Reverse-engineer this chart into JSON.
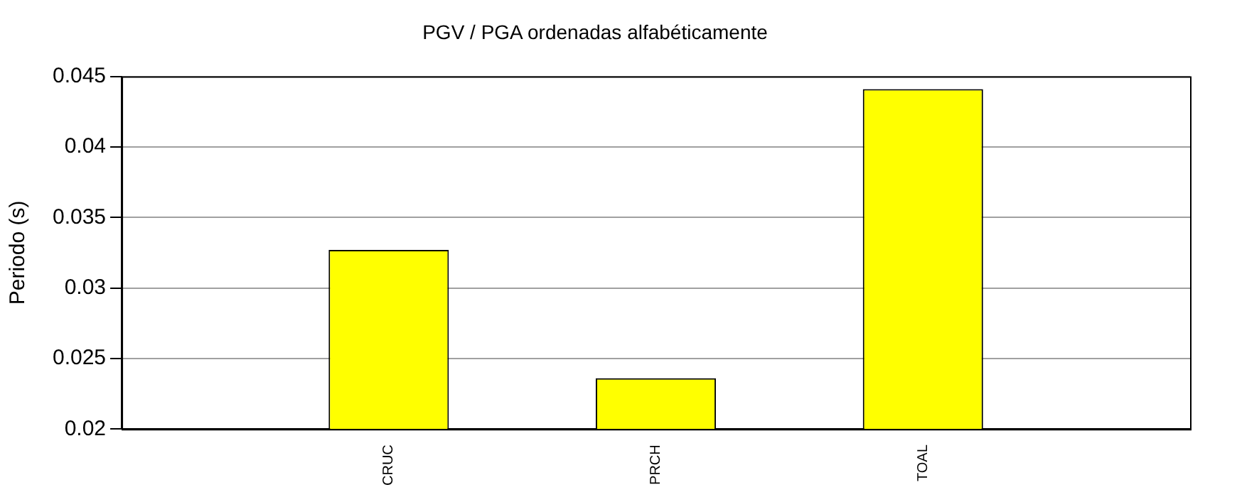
{
  "chart_data": {
    "type": "bar",
    "title": "PGV / PGA ordenadas alfabéticamente",
    "ylabel": "Periodo (s)",
    "categories": [
      null,
      "CRUC",
      "PRCH",
      "TOAL",
      null
    ],
    "series": [
      {
        "color": "#ffff00",
        "values": [
          null,
          0.0327,
          0.0236,
          0.0441,
          null
        ]
      }
    ],
    "ylim": [
      0.02,
      0.045
    ],
    "yticks": [
      0.02,
      0.025,
      0.03,
      0.035,
      0.04,
      0.045
    ],
    "grid": "y",
    "legend": false
  }
}
